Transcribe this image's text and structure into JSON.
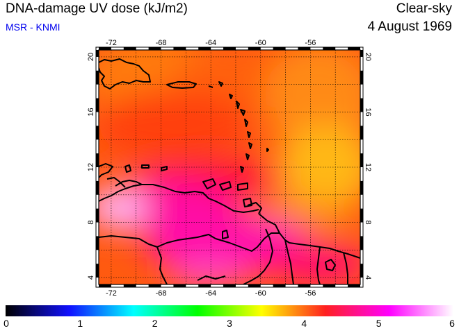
{
  "header": {
    "title": "DNA-damage UV dose (kJ/m2)",
    "credit": "MSR - KNMI",
    "condition": "Clear-sky",
    "date": "4 August 1969"
  },
  "map": {
    "lon_range": [
      -73,
      -52
    ],
    "lat_range": [
      3.5,
      20.5
    ],
    "lon_ticks": [
      -72,
      -68,
      -64,
      -60,
      -56
    ],
    "lat_ticks": [
      4,
      8,
      12,
      16,
      20
    ],
    "lon_tick_labels": [
      "-72",
      "-68",
      "-64",
      "-60",
      "-56"
    ],
    "lat_tick_labels": [
      "4",
      "8",
      "12",
      "16",
      "20"
    ],
    "grid": "dotted, every 2 degrees"
  },
  "colorbar": {
    "min": 0,
    "max": 6,
    "labels": [
      "0",
      "1",
      "2",
      "3",
      "4",
      "5",
      "6"
    ],
    "colors": [
      "#000000",
      "#1010ff",
      "#00ffff",
      "#00ff00",
      "#ffff00",
      "#ff2020",
      "#ff00ff",
      "#ffffff"
    ]
  }
}
